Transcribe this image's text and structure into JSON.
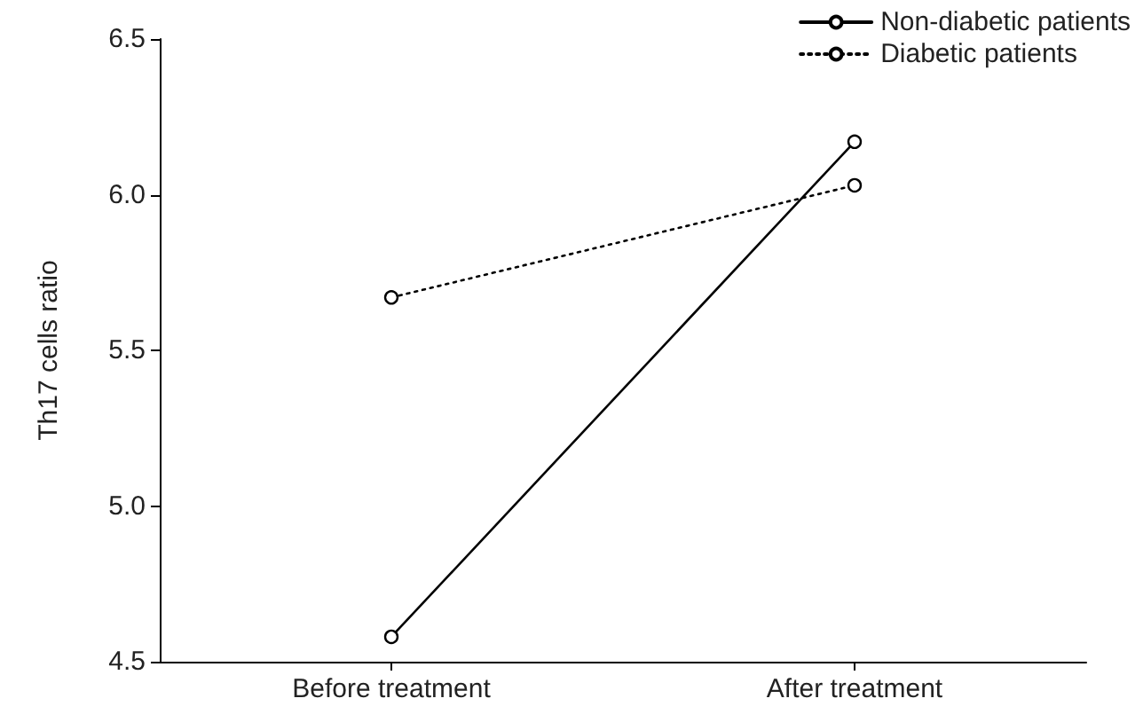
{
  "chart_data": {
    "type": "line",
    "ylabel": "Th17 cells ratio",
    "categories": [
      "Before treatment",
      "After treatment"
    ],
    "series": [
      {
        "name": "Non-diabetic patients",
        "color": "#000000",
        "values": [
          4.58,
          6.17
        ],
        "line_style": "solid"
      },
      {
        "name": "Diabetic patients",
        "color": "#000000",
        "values": [
          5.67,
          6.03
        ],
        "line_style": "dotted"
      }
    ],
    "ylim": [
      4.5,
      6.5
    ],
    "yticks": [
      4.5,
      {
        "value": 5,
        "label": "5.0"
      },
      5.5,
      {
        "value": 6,
        "label": "6.0"
      },
      6.5
    ],
    "marker": "circle",
    "grid": false,
    "legend": "top right"
  }
}
